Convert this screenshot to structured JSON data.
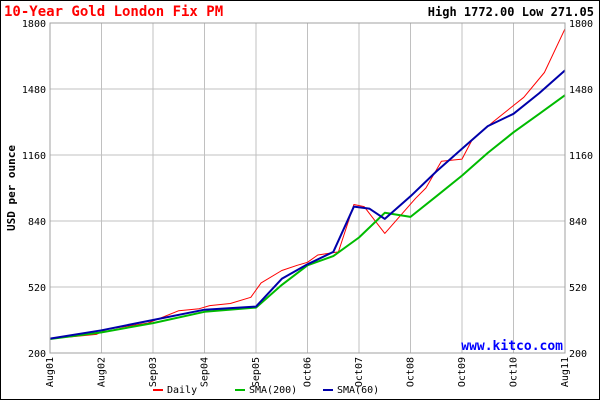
{
  "chart_data": {
    "type": "line",
    "title": "10-Year Gold London Fix PM",
    "high_label": "High",
    "high_value": "1772.00",
    "low_label": "Low",
    "low_value": "271.05",
    "ylabel": "USD per ounce",
    "xlabel": "",
    "ylim": [
      200,
      1800
    ],
    "y_ticks": [
      "1800",
      "1480",
      "1160",
      "840",
      "520",
      "200"
    ],
    "x_ticks": [
      "Aug01",
      "Aug02",
      "Sep03",
      "Sep04",
      "Sep05",
      "Oct06",
      "Oct07",
      "Oct08",
      "Oct09",
      "Oct10",
      "Aug11"
    ],
    "grid": true,
    "watermark": "www.kitco.com",
    "legend_position": "bottom",
    "colors": {
      "title": "#ff0000",
      "daily": "#ff0000",
      "sma200": "#00bb00",
      "sma60": "#0000aa",
      "watermark": "#0000ff",
      "grid": "#c0c0c0",
      "frame": "#a0a0a0"
    },
    "series": [
      {
        "name": "Daily",
        "x": [
          0,
          0.4,
          0.9,
          1.1,
          1.5,
          1.9,
          2.1,
          2.5,
          2.9,
          3.1,
          3.5,
          3.9,
          4.1,
          4.5,
          4.8,
          5.0,
          5.2,
          5.6,
          5.9,
          6.1,
          6.5,
          7.1,
          7.3,
          7.6,
          8.0,
          8.2,
          8.6,
          9.0,
          9.2,
          9.6,
          10.0
        ],
        "values": [
          272,
          278,
          290,
          315,
          330,
          345,
          365,
          405,
          415,
          430,
          440,
          470,
          540,
          600,
          625,
          640,
          675,
          690,
          920,
          910,
          780,
          950,
          1000,
          1130,
          1140,
          1235,
          1320,
          1400,
          1440,
          1560,
          1772
        ]
      },
      {
        "name": "SMA(200)",
        "x": [
          0,
          1,
          2,
          3,
          4,
          4.5,
          5,
          5.5,
          6,
          6.5,
          7,
          7.5,
          8,
          8.5,
          9,
          9.5,
          10
        ],
        "values": [
          268,
          300,
          345,
          400,
          420,
          530,
          625,
          670,
          760,
          880,
          860,
          960,
          1060,
          1170,
          1270,
          1360,
          1450
        ]
      },
      {
        "name": "SMA(60)",
        "x": [
          0,
          1,
          2,
          3,
          4,
          4.5,
          5,
          5.5,
          5.9,
          6.2,
          6.5,
          7,
          7.5,
          8,
          8.5,
          9,
          9.5,
          10
        ],
        "values": [
          270,
          310,
          360,
          410,
          425,
          560,
          630,
          690,
          910,
          900,
          850,
          960,
          1080,
          1190,
          1300,
          1360,
          1460,
          1570
        ]
      }
    ]
  }
}
